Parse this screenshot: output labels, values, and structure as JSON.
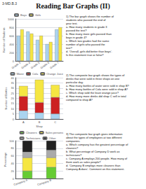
{
  "title": "Reading Bar Graphs (II)",
  "subtitle": "3-MD.B.3",
  "chart_data": [
    {
      "type": "bar",
      "stacked": false,
      "categories": [
        "Grade 3",
        "Grade 4",
        "Grade 5",
        "Grade 6",
        "Grade 7"
      ],
      "series": [
        {
          "name": "Boys",
          "color": "#aad4f0",
          "values": [
            600,
            700,
            500,
            400,
            750
          ]
        },
        {
          "name": "Girls",
          "color": "#f5e642",
          "values": [
            750,
            650,
            600,
            450,
            800
          ]
        }
      ],
      "ylabel": "Number of Students",
      "ylim": [
        0,
        1000
      ],
      "yticks": [
        0,
        200,
        400,
        600,
        800,
        1000
      ],
      "grid": true,
      "legend": "upper left",
      "annotations": [
        "1) The bar graph shows the number of\nstudents who passed the end of\nyear test.\na. How many students in grade 3\npassed the test?\nb. How many more girls passed than\nboys in grade 4?\nc. Which two grades had the same\nnumber of girls who passed the\ntest?\nd. 'Overall, girls did better than boys'.\nIs this statement true or false?"
      ]
    },
    {
      "type": "bar",
      "stacked": true,
      "categories": [
        "A",
        "B",
        "C"
      ],
      "series": [
        {
          "name": "Water",
          "color": "#aad4f0",
          "values": [
            8,
            6,
            5
          ]
        },
        {
          "name": "Cola",
          "color": "#cc2222",
          "values": [
            14,
            10,
            16
          ]
        },
        {
          "name": "Orange Juice",
          "color": "#f5e642",
          "values": [
            10,
            22,
            12
          ]
        }
      ],
      "xlabel": "Shop",
      "ylabel": "Number of Bottles",
      "ylim": [
        0,
        40
      ],
      "yticks": [
        0,
        5,
        10,
        15,
        20,
        25,
        30,
        35,
        40
      ],
      "grid": true,
      "legend": "upper right",
      "annotations": [
        "2) The composite bar graph shows the types of\ndrinks that were sold in three shops on one\nparticular day.\na. How many bottles of water were sold in shop B?\nb. How many bottles of Cola were sold in shop A?\nc. Which shop sold the least orange juice?\nd. How many more drinks did shop C sell in total\ncompared to shop A?"
      ]
    },
    {
      "type": "bar",
      "stacked": true,
      "categories": [
        "Company A",
        "Company B"
      ],
      "series": [
        {
          "name": "Cleaners",
          "color": "#66cc33",
          "values": [
            20,
            30
          ]
        },
        {
          "name": "Sales persons",
          "color": "#f5e642",
          "values": [
            35,
            25
          ]
        },
        {
          "name": "Technicians",
          "color": "#aaaaaa",
          "values": [
            15,
            20
          ]
        },
        {
          "name": "Other",
          "color": "#222222",
          "values": [
            30,
            25
          ]
        }
      ],
      "ylabel": "Percentage",
      "ylim": [
        0,
        100
      ],
      "yticks": [
        0,
        20,
        40,
        60,
        80,
        100
      ],
      "grid": true,
      "legend": "upper right",
      "annotations": [
        "3) The composite bar graph gives information\nabout the types of employees at two different\ncompanies.\na. Which company has the greatest percentage of\ncleaners?\nb. What percentage of Company D work as\ntechnicians?\nc. Company A employs 200 people. How many of\nthem work as sales people?\nd. 'Company B employs more cleaners than\nCompany A does'. Comment on this statement."
      ]
    }
  ]
}
